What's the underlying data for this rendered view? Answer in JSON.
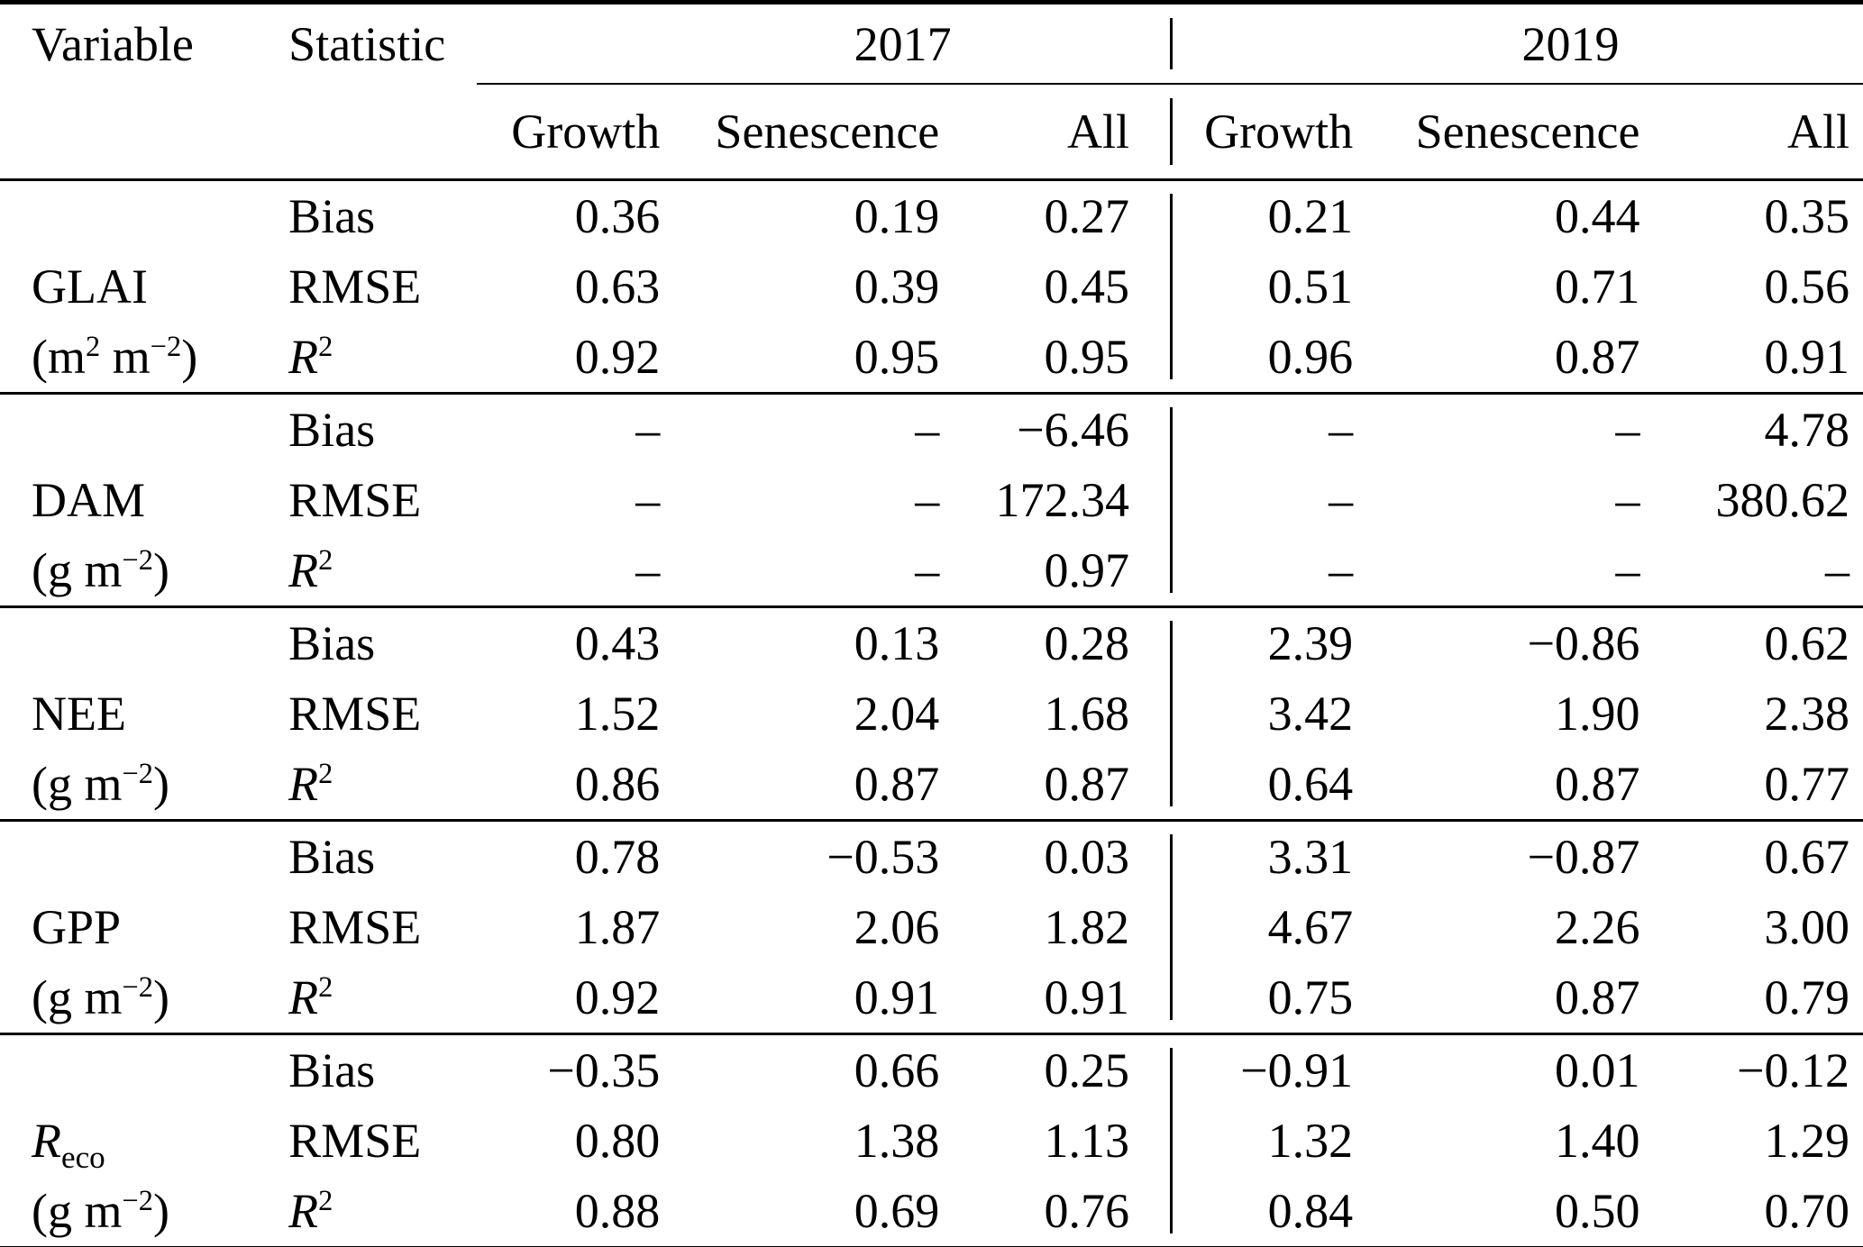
{
  "colors": {
    "text": "#000000",
    "background": "#ffffff",
    "rule": "#000000"
  },
  "table": {
    "header": {
      "variable": "Variable",
      "statistic": "Statistic",
      "year_2017": "2017",
      "year_2019": "2019",
      "sub": [
        "Growth",
        "Senescence",
        "All"
      ]
    },
    "variables": [
      {
        "key": "glai",
        "name": {
          "main": "GLAI",
          "sub": "",
          "italic": false
        },
        "unit": {
          "pre": "(m",
          "sup1": "2",
          "mid": " m",
          "sup2": "−2",
          "post": ")"
        },
        "rows": [
          {
            "stat": {
              "label": "Bias",
              "sup": "",
              "italic": false
            },
            "values": [
              "0.36",
              "0.19",
              "0.27",
              "0.21",
              "0.44",
              "0.35"
            ]
          },
          {
            "stat": {
              "label": "RMSE",
              "sup": "",
              "italic": false
            },
            "values": [
              "0.63",
              "0.39",
              "0.45",
              "0.51",
              "0.71",
              "0.56"
            ]
          },
          {
            "stat": {
              "label": "R",
              "sup": "2",
              "italic": true
            },
            "values": [
              "0.92",
              "0.95",
              "0.95",
              "0.96",
              "0.87",
              "0.91"
            ]
          }
        ]
      },
      {
        "key": "dam",
        "name": {
          "main": "DAM",
          "sub": "",
          "italic": false
        },
        "unit": {
          "pre": "(g",
          "sup1": "",
          "mid": " m",
          "sup2": "−2",
          "post": ")"
        },
        "rows": [
          {
            "stat": {
              "label": "Bias",
              "sup": "",
              "italic": false
            },
            "values": [
              "–",
              "–",
              "−6.46",
              "–",
              "–",
              "4.78"
            ]
          },
          {
            "stat": {
              "label": "RMSE",
              "sup": "",
              "italic": false
            },
            "values": [
              "–",
              "–",
              "172.34",
              "–",
              "–",
              "380.62"
            ]
          },
          {
            "stat": {
              "label": "R",
              "sup": "2",
              "italic": true
            },
            "values": [
              "–",
              "–",
              "0.97",
              "–",
              "–",
              "–"
            ]
          }
        ]
      },
      {
        "key": "nee",
        "name": {
          "main": "NEE",
          "sub": "",
          "italic": false
        },
        "unit": {
          "pre": "(g",
          "sup1": "",
          "mid": " m",
          "sup2": "−2",
          "post": ")"
        },
        "rows": [
          {
            "stat": {
              "label": "Bias",
              "sup": "",
              "italic": false
            },
            "values": [
              "0.43",
              "0.13",
              "0.28",
              "2.39",
              "−0.86",
              "0.62"
            ]
          },
          {
            "stat": {
              "label": "RMSE",
              "sup": "",
              "italic": false
            },
            "values": [
              "1.52",
              "2.04",
              "1.68",
              "3.42",
              "1.90",
              "2.38"
            ]
          },
          {
            "stat": {
              "label": "R",
              "sup": "2",
              "italic": true
            },
            "values": [
              "0.86",
              "0.87",
              "0.87",
              "0.64",
              "0.87",
              "0.77"
            ]
          }
        ]
      },
      {
        "key": "gpp",
        "name": {
          "main": "GPP",
          "sub": "",
          "italic": false
        },
        "unit": {
          "pre": "(g",
          "sup1": "",
          "mid": " m",
          "sup2": "−2",
          "post": ")"
        },
        "rows": [
          {
            "stat": {
              "label": "Bias",
              "sup": "",
              "italic": false
            },
            "values": [
              "0.78",
              "−0.53",
              "0.03",
              "3.31",
              "−0.87",
              "0.67"
            ]
          },
          {
            "stat": {
              "label": "RMSE",
              "sup": "",
              "italic": false
            },
            "values": [
              "1.87",
              "2.06",
              "1.82",
              "4.67",
              "2.26",
              "3.00"
            ]
          },
          {
            "stat": {
              "label": "R",
              "sup": "2",
              "italic": true
            },
            "values": [
              "0.92",
              "0.91",
              "0.91",
              "0.75",
              "0.87",
              "0.79"
            ]
          }
        ]
      },
      {
        "key": "reco",
        "name": {
          "main": "R",
          "sub": "eco",
          "italic": true
        },
        "unit": {
          "pre": "(g",
          "sup1": "",
          "mid": " m",
          "sup2": "−2",
          "post": ")"
        },
        "rows": [
          {
            "stat": {
              "label": "Bias",
              "sup": "",
              "italic": false
            },
            "values": [
              "−0.35",
              "0.66",
              "0.25",
              "−0.91",
              "0.01",
              "−0.12"
            ]
          },
          {
            "stat": {
              "label": "RMSE",
              "sup": "",
              "italic": false
            },
            "values": [
              "0.80",
              "1.38",
              "1.13",
              "1.32",
              "1.40",
              "1.29"
            ]
          },
          {
            "stat": {
              "label": "R",
              "sup": "2",
              "italic": true
            },
            "values": [
              "0.88",
              "0.69",
              "0.76",
              "0.84",
              "0.50",
              "0.70"
            ]
          }
        ]
      }
    ]
  }
}
